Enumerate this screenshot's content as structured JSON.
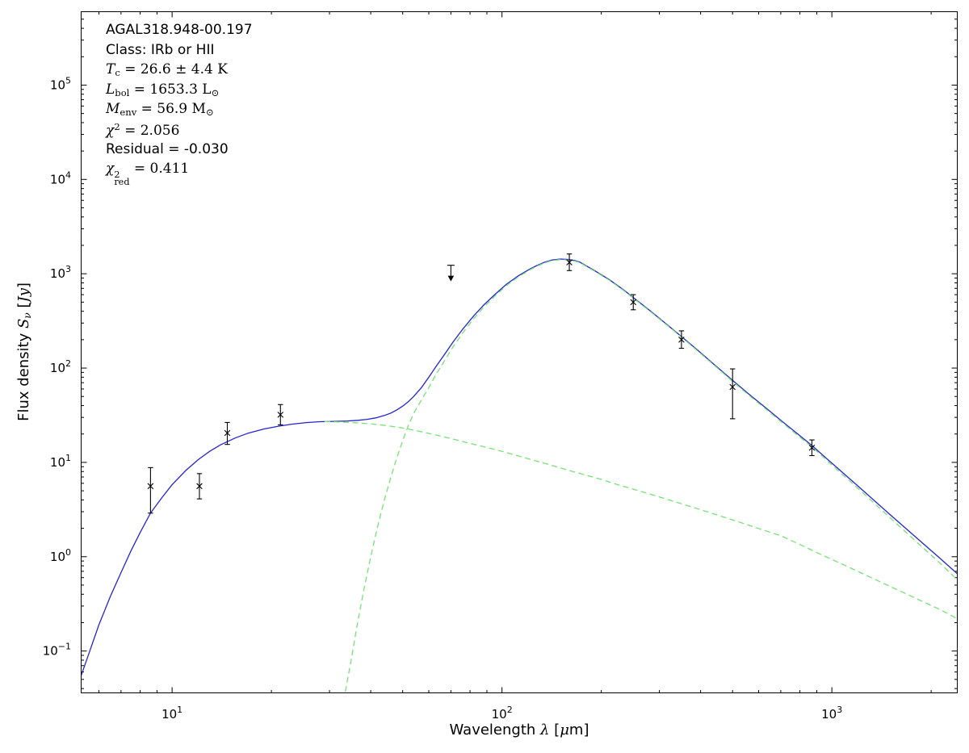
{
  "figure": {
    "background": "#ffffff",
    "accent_colors": {
      "fit_total": "#2424cf",
      "components": "#77e077",
      "data_points": "#000000"
    }
  },
  "annotation": {
    "lines": [
      {
        "segments": [
          [
            "AGAL318.948-00.197",
            "sans"
          ]
        ]
      },
      {
        "segments": [
          [
            "Class: IRb or HII",
            "sans"
          ]
        ]
      },
      {
        "segments": [
          [
            "T",
            "it"
          ],
          [
            "c",
            "sub"
          ],
          [
            " = 26.6 ± 4.4 K",
            "rm"
          ]
        ]
      },
      {
        "segments": [
          [
            "L",
            "it"
          ],
          [
            "bol",
            "sub"
          ],
          [
            " = 1653.3 L",
            "rm"
          ],
          [
            "⊙",
            "sub"
          ]
        ]
      },
      {
        "segments": [
          [
            "M",
            "it"
          ],
          [
            "env",
            "sub"
          ],
          [
            " = 56.9 M",
            "rm"
          ],
          [
            "⊙",
            "sub"
          ]
        ]
      },
      {
        "segments": [
          [
            "χ",
            "it"
          ],
          [
            "2",
            "sup"
          ],
          [
            " = 2.056",
            "rm"
          ]
        ]
      },
      {
        "segments": [
          [
            "Residual = -0.030",
            "sans"
          ]
        ]
      },
      {
        "segments": [
          [
            "χ",
            "it"
          ],
          [
            "2|red",
            "stack"
          ],
          [
            " = 0.411",
            "rm"
          ]
        ]
      }
    ]
  },
  "axes": {
    "xlabel_segments": [
      [
        "Wavelength ",
        "sans"
      ],
      [
        "λ",
        "it"
      ],
      [
        " [",
        "sans"
      ],
      [
        "μ",
        "it"
      ],
      [
        "m",
        "sans"
      ],
      [
        "]",
        "sans"
      ]
    ],
    "ylabel_segments": [
      [
        "Flux density ",
        "sans"
      ],
      [
        "S",
        "it"
      ],
      [
        "ν",
        "subi"
      ],
      [
        " [",
        "sans"
      ],
      [
        "Jy",
        "it"
      ],
      [
        "]",
        "sans"
      ]
    ]
  },
  "chart_data": {
    "type": "line",
    "x_scale": "log",
    "y_scale": "log",
    "xlim": [
      5.3,
      2400
    ],
    "ylim": [
      0.036,
      600000
    ],
    "grid": false,
    "x_major_tick_exponents": [
      1,
      2,
      3
    ],
    "y_major_tick_exponents": [
      -1,
      0,
      1,
      2,
      3,
      4,
      5
    ],
    "series": [
      {
        "name": "total model fit",
        "color": "#2424cf",
        "style": "solid",
        "x": [
          5.3,
          5.6,
          6,
          6.5,
          7,
          7.5,
          8,
          8.6,
          9.3,
          10,
          11,
          12,
          13,
          14,
          15.5,
          17,
          19,
          21,
          23,
          25.5,
          28,
          31,
          34,
          36.5,
          39,
          41.5,
          44,
          46,
          48,
          50,
          52,
          54,
          57,
          60,
          63,
          67,
          71,
          76,
          82,
          88,
          95,
          103,
          112,
          122,
          128,
          135,
          142,
          150,
          158,
          166,
          172,
          190,
          212,
          235,
          250,
          280,
          315,
          350,
          390,
          440,
          500,
          560,
          630,
          700,
          780,
          870,
          1000,
          1200,
          1500,
          1800,
          2100,
          2400
        ],
        "y": [
          0.055,
          0.095,
          0.19,
          0.38,
          0.68,
          1.15,
          1.8,
          2.9,
          4.2,
          5.8,
          8.2,
          10.7,
          13.1,
          15.3,
          18.1,
          20.4,
          22.6,
          24.2,
          25.4,
          26.4,
          27.0,
          27.2,
          27.5,
          27.9,
          28.6,
          29.7,
          31.4,
          33.3,
          36,
          39.5,
          44,
          50,
          62,
          80,
          103,
          140,
          188,
          258,
          355,
          465,
          600,
          770,
          950,
          1130,
          1230,
          1330,
          1400,
          1430,
          1420,
          1380,
          1330,
          1090,
          860,
          665,
          560,
          410,
          293,
          216,
          157,
          109,
          74,
          53,
          38,
          28,
          20.6,
          15.1,
          9.8,
          5.6,
          2.8,
          1.6,
          1.0,
          0.66
        ]
      },
      {
        "name": "warm component",
        "color": "#77e077",
        "style": "dashed",
        "x": [
          29,
          32,
          36,
          40,
          44,
          48,
          52,
          57,
          63,
          71,
          80,
          90,
          100,
          112,
          125,
          140,
          158,
          178,
          200,
          228,
          260,
          300,
          345,
          400,
          460,
          530,
          610,
          700,
          810,
          930,
          1070,
          1230,
          1420,
          1640,
          1900,
          2150,
          2400
        ],
        "y": [
          27.1,
          26.8,
          26.3,
          25.6,
          24.7,
          23.7,
          22.6,
          21.1,
          19.5,
          17.7,
          15.9,
          14.4,
          13.1,
          11.7,
          10.5,
          9.4,
          8.3,
          7.4,
          6.6,
          5.7,
          5.0,
          4.3,
          3.7,
          3.15,
          2.7,
          2.3,
          1.95,
          1.67,
          1.32,
          1.05,
          0.84,
          0.67,
          0.53,
          0.42,
          0.33,
          0.27,
          0.22
        ]
      },
      {
        "name": "cold component",
        "color": "#77e077",
        "style": "dashed",
        "x": [
          33.5,
          35,
          36.5,
          38,
          40,
          42,
          44,
          46,
          48,
          50,
          52,
          54,
          57,
          60,
          63,
          67,
          71,
          76,
          82,
          88,
          95,
          103,
          112,
          122,
          128,
          135,
          142,
          150,
          158,
          166,
          172,
          190,
          212,
          235,
          250,
          280,
          315,
          350,
          390,
          440,
          500,
          560,
          630,
          700,
          780,
          870,
          1000,
          1200,
          1500,
          1800,
          2100,
          2400
        ],
        "y": [
          0.037,
          0.085,
          0.2,
          0.42,
          1.0,
          2.1,
          4.0,
          6.9,
          11.2,
          17,
          24.5,
          33,
          46,
          62,
          85,
          120,
          167,
          236,
          332,
          441,
          576,
          746,
          926,
          1107,
          1207,
          1308,
          1379,
          1410,
          1401,
          1362,
          1313,
          1075,
          848,
          656,
          552,
          404,
          289,
          213,
          154,
          107,
          72.3,
          51.6,
          36.9,
          27.2,
          19.9,
          14.6,
          9.4,
          5.3,
          2.6,
          1.45,
          0.89,
          0.57
        ]
      }
    ],
    "points": [
      {
        "x": 8.6,
        "y": 5.6,
        "ylo": 2.9,
        "yhi": 8.8
      },
      {
        "x": 12.1,
        "y": 5.6,
        "ylo": 4.1,
        "yhi": 7.6
      },
      {
        "x": 14.7,
        "y": 20.5,
        "ylo": 15.5,
        "yhi": 26.5
      },
      {
        "x": 21.3,
        "y": 32,
        "ylo": 25,
        "yhi": 41
      },
      {
        "x": 160,
        "y": 1320,
        "ylo": 1080,
        "yhi": 1620
      },
      {
        "x": 250,
        "y": 500,
        "ylo": 415,
        "yhi": 600
      },
      {
        "x": 350,
        "y": 200,
        "ylo": 162,
        "yhi": 248
      },
      {
        "x": 500,
        "y": 63,
        "ylo": 29,
        "yhi": 98
      },
      {
        "x": 870,
        "y": 14.3,
        "ylo": 11.8,
        "yhi": 17.3
      }
    ],
    "upper_limits": [
      {
        "x": 70,
        "y": 1230
      }
    ]
  }
}
